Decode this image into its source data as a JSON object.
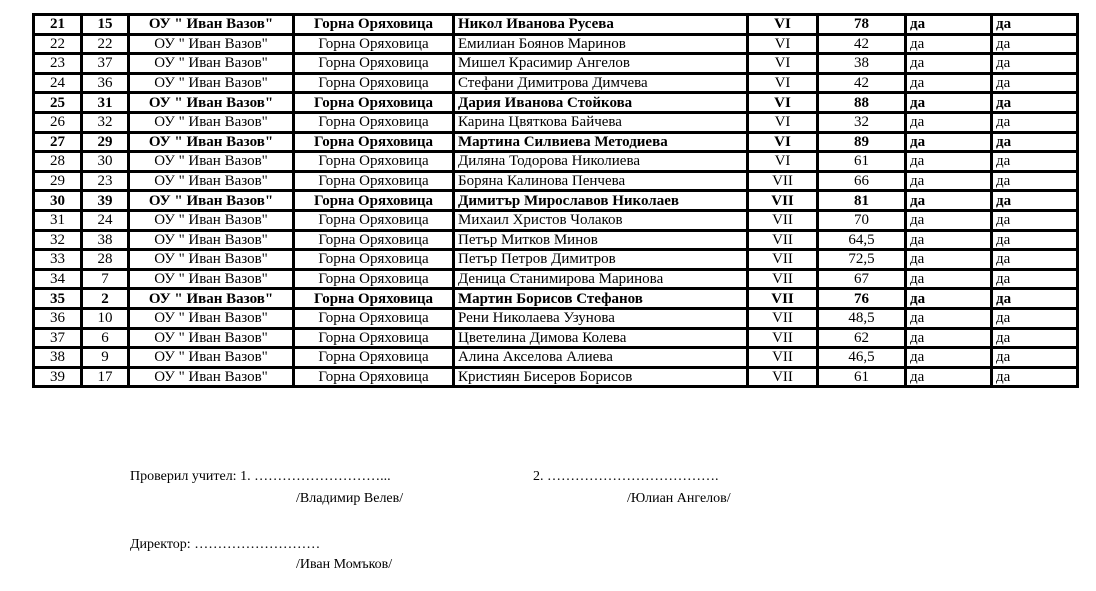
{
  "rows": [
    {
      "n": "21",
      "id": "15",
      "school": "ОУ \" Иван Вазов\"",
      "town": "Горна Оряховица",
      "name": "Никол Иванова Русева",
      "grade": "VI",
      "score": "78",
      "c1": "да",
      "c2": "да",
      "bold": true
    },
    {
      "n": "22",
      "id": "22",
      "school": "ОУ \" Иван Вазов\"",
      "town": "Горна Оряховица",
      "name": "Емилиан Боянов Маринов",
      "grade": "VI",
      "score": "42",
      "c1": "да",
      "c2": "да",
      "bold": false
    },
    {
      "n": "23",
      "id": "37",
      "school": "ОУ \" Иван Вазов\"",
      "town": "Горна Оряховица",
      "name": "Мишел Красимир Ангелов",
      "grade": "VI",
      "score": "38",
      "c1": "да",
      "c2": "да",
      "bold": false
    },
    {
      "n": "24",
      "id": "36",
      "school": "ОУ \" Иван Вазов\"",
      "town": "Горна Оряховица",
      "name": "Стефани Димитрова Димчева",
      "grade": "VI",
      "score": "42",
      "c1": "да",
      "c2": "да",
      "bold": false
    },
    {
      "n": "25",
      "id": "31",
      "school": "ОУ \" Иван Вазов\"",
      "town": "Горна Оряховица",
      "name": "Дария Иванова Стойкова",
      "grade": "VI",
      "score": "88",
      "c1": "да",
      "c2": "да",
      "bold": true
    },
    {
      "n": "26",
      "id": "32",
      "school": "ОУ \" Иван Вазов\"",
      "town": "Горна Оряховица",
      "name": "Карина Цвяткова Байчева",
      "grade": "VI",
      "score": "32",
      "c1": "да",
      "c2": "да",
      "bold": false
    },
    {
      "n": "27",
      "id": "29",
      "school": "ОУ \" Иван Вазов\"",
      "town": "Горна Оряховица",
      "name": "Мартина Силвиева Методиева",
      "grade": "VI",
      "score": "89",
      "c1": "да",
      "c2": "да",
      "bold": true
    },
    {
      "n": "28",
      "id": "30",
      "school": "ОУ \" Иван Вазов\"",
      "town": "Горна Оряховица",
      "name": "Диляна Тодорова Николиева",
      "grade": "VI",
      "score": "61",
      "c1": "да",
      "c2": "да",
      "bold": false
    },
    {
      "n": "29",
      "id": "23",
      "school": "ОУ \" Иван Вазов\"",
      "town": "Горна Оряховица",
      "name": "Боряна Калинова Пенчева",
      "grade": "VII",
      "score": "66",
      "c1": "да",
      "c2": "да",
      "bold": false
    },
    {
      "n": "30",
      "id": "39",
      "school": "ОУ \" Иван Вазов\"",
      "town": "Горна Оряховица",
      "name": "Димитър Мирославов Николаев",
      "grade": "VII",
      "score": "81",
      "c1": "да",
      "c2": "да",
      "bold": true
    },
    {
      "n": "31",
      "id": "24",
      "school": "ОУ \" Иван Вазов\"",
      "town": "Горна Оряховица",
      "name": "Михаил Христов Чолаков",
      "grade": "VII",
      "score": "70",
      "c1": "да",
      "c2": "да",
      "bold": false
    },
    {
      "n": "32",
      "id": "38",
      "school": "ОУ \" Иван Вазов\"",
      "town": "Горна Оряховица",
      "name": "Петър Митков Минов",
      "grade": "VII",
      "score": "64,5",
      "c1": "да",
      "c2": "да",
      "bold": false
    },
    {
      "n": "33",
      "id": "28",
      "school": "ОУ \" Иван Вазов\"",
      "town": "Горна Оряховица",
      "name": "Петър Петров Димитров",
      "grade": "VII",
      "score": "72,5",
      "c1": "да",
      "c2": "да",
      "bold": false
    },
    {
      "n": "34",
      "id": "7",
      "school": "ОУ \" Иван Вазов\"",
      "town": "Горна Оряховица",
      "name": "Деница Станимирова Маринова",
      "grade": "VII",
      "score": "67",
      "c1": "да",
      "c2": "да",
      "bold": false
    },
    {
      "n": "35",
      "id": "2",
      "school": "ОУ \" Иван Вазов\"",
      "town": "Горна Оряховица",
      "name": "Мартин Борисов Стефанов",
      "grade": "VII",
      "score": "76",
      "c1": "да",
      "c2": "да",
      "bold": true
    },
    {
      "n": "36",
      "id": "10",
      "school": "ОУ \" Иван Вазов\"",
      "town": "Горна Оряховица",
      "name": "Рени Николаева Узунова",
      "grade": "VII",
      "score": "48,5",
      "c1": "да",
      "c2": "да",
      "bold": false
    },
    {
      "n": "37",
      "id": "6",
      "school": "ОУ \" Иван Вазов\"",
      "town": "Горна Оряховица",
      "name": "Цветелина Димова Колева",
      "grade": "VII",
      "score": "62",
      "c1": "да",
      "c2": "да",
      "bold": false
    },
    {
      "n": "38",
      "id": "9",
      "school": "ОУ \" Иван Вазов\"",
      "town": "Горна Оряховица",
      "name": "Алина Акселова Алиева",
      "grade": "VII",
      "score": "46,5",
      "c1": "да",
      "c2": "да",
      "bold": false
    },
    {
      "n": "39",
      "id": "17",
      "school": "ОУ \" Иван Вазов\"",
      "town": "Горна Оряховица",
      "name": "Кристиян Бисеров Борисов",
      "grade": "VII",
      "score": "61",
      "c1": "да",
      "c2": "да",
      "bold": false
    }
  ],
  "signatures": {
    "checked_label": "Проверил учител: 1.  ………………………...",
    "teacher1": "/Владимир Велев/",
    "second_label": "2. ……………………………….",
    "teacher2": "/Юлиан Ангелов/",
    "director_label": "Директор:  ………………………",
    "director": "/Иван Момъков/"
  }
}
